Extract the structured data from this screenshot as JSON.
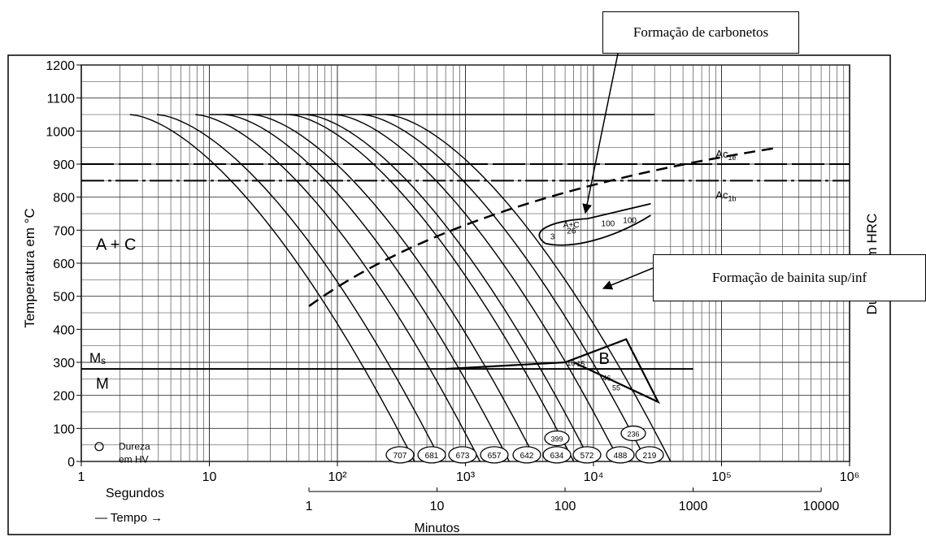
{
  "callouts": {
    "carbides": "Formação de carbonetos",
    "bainite": "Formação de bainita sup/inf"
  },
  "chart_data": {
    "type": "line",
    "title": "",
    "ylabel": "Temperatura em °C",
    "ylabel_right": "Dureza em HRC",
    "xscale": "log",
    "xlim": [
      1,
      1000000
    ],
    "ylim": [
      0,
      1200
    ],
    "x_ticks_seconds": [
      "1",
      "10",
      "10²",
      "10³",
      "10⁴",
      "10⁵",
      "10⁶"
    ],
    "y_ticks": [
      0,
      100,
      200,
      300,
      400,
      500,
      600,
      700,
      800,
      900,
      1000,
      1100,
      1200
    ],
    "minutes_axis": {
      "label": "Minutos",
      "ticks": [
        "1",
        "10",
        "100",
        "1000",
        "10000"
      ]
    },
    "time_labels": {
      "seconds": "Segundos",
      "time": "— Tempo →"
    },
    "critical_temperatures": [
      {
        "label": "Ac1e",
        "label_main": "Ac",
        "label_sub": "1e",
        "temperature": 900
      },
      {
        "label": "Ac1b",
        "label_main": "Ac",
        "label_sub": "1b",
        "temperature": 850
      }
    ],
    "ms": {
      "label_main": "M",
      "label_sub": "s",
      "temperature": 280
    },
    "region_labels": {
      "austenite_carbide": "A + C",
      "martensite": "M",
      "bainite": "B",
      "carbide_region": "A+C"
    },
    "austenitizing_temperature": 1050,
    "legend": {
      "symbol": "circle",
      "text_1": "Dureza",
      "text_2": "em HV"
    },
    "hardness_hv": [
      "707",
      "681",
      "673",
      "657",
      "642",
      "634",
      "572",
      "488",
      "219"
    ],
    "hardness_hv_upper": [
      "399",
      "236"
    ],
    "carbide_percentages": [
      "3",
      "26",
      "100",
      "100"
    ],
    "bainite_percentages": [
      "16",
      "15",
      "46",
      "55"
    ],
    "cooling_curve_endpoints_seconds": [
      400,
      650,
      1300,
      2200,
      3600,
      7000,
      9500,
      16000,
      26000,
      40000
    ]
  }
}
